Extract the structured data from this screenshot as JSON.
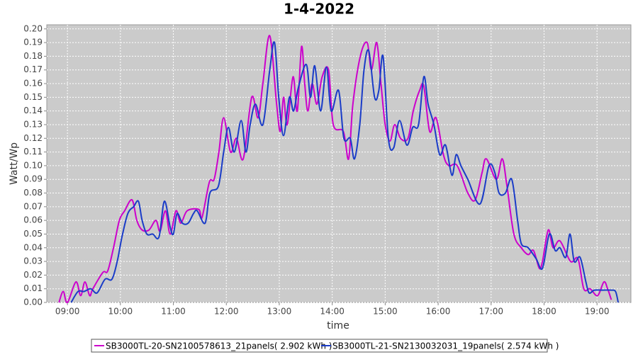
{
  "chart_data": {
    "type": "line",
    "title": "1-4-2022",
    "x_label": "time",
    "y_label": "Watt/Wp",
    "xlim": [
      8.61,
      19.64
    ],
    "ylim": [
      0,
      0.203
    ],
    "grid": true,
    "xticks": [
      {
        "value": 9,
        "label": "09:00"
      },
      {
        "value": 10,
        "label": "10:00"
      },
      {
        "value": 11,
        "label": "11:00"
      },
      {
        "value": 12,
        "label": "12:00"
      },
      {
        "value": 13,
        "label": "13:00"
      },
      {
        "value": 14,
        "label": "14:00"
      },
      {
        "value": 15,
        "label": "15:00"
      },
      {
        "value": 16,
        "label": "16:00"
      },
      {
        "value": 17,
        "label": "17:00"
      },
      {
        "value": 18,
        "label": "18:00"
      },
      {
        "value": 19,
        "label": "19:00"
      }
    ],
    "yticks": [
      {
        "value": 0,
        "label": "0.00"
      },
      {
        "value": 0.01,
        "label": "0.01"
      },
      {
        "value": 0.02,
        "label": "0.02"
      },
      {
        "value": 0.03,
        "label": "0.03"
      },
      {
        "value": 0.04,
        "label": "0.04"
      },
      {
        "value": 0.05,
        "label": "0.05"
      },
      {
        "value": 0.06,
        "label": "0.06"
      },
      {
        "value": 0.07,
        "label": "0.07"
      },
      {
        "value": 0.08,
        "label": "0.08"
      },
      {
        "value": 0.09,
        "label": "0.09"
      },
      {
        "value": 0.1,
        "label": "0.10"
      },
      {
        "value": 0.11,
        "label": "0.11"
      },
      {
        "value": 0.12,
        "label": "0.12"
      },
      {
        "value": 0.13,
        "label": "0.13"
      },
      {
        "value": 0.14,
        "label": "0.14"
      },
      {
        "value": 0.15,
        "label": "0.15"
      },
      {
        "value": 0.16,
        "label": "0.16"
      },
      {
        "value": 0.17,
        "label": "0.17"
      },
      {
        "value": 0.18,
        "label": "0.18"
      },
      {
        "value": 0.19,
        "label": "0.19"
      },
      {
        "value": 0.2,
        "label": "0.20"
      }
    ],
    "series": [
      {
        "name": "SB3000TL-20-SN2100578613_21panels( 2.902 kWh )",
        "color": "#cc00cc",
        "x": [
          8.84,
          8.92,
          9.0,
          9.16,
          9.25,
          9.33,
          9.42,
          9.48,
          9.67,
          9.76,
          9.87,
          9.98,
          10.08,
          10.22,
          10.31,
          10.41,
          10.54,
          10.67,
          10.75,
          10.85,
          10.94,
          11.05,
          11.14,
          11.26,
          11.48,
          11.54,
          11.68,
          11.77,
          11.86,
          11.95,
          12.08,
          12.19,
          12.32,
          12.48,
          12.6,
          12.69,
          12.82,
          12.95,
          13.02,
          13.08,
          13.15,
          13.26,
          13.34,
          13.42,
          13.48,
          13.54,
          13.62,
          13.71,
          13.81,
          13.93,
          14.02,
          14.21,
          14.31,
          14.39,
          14.53,
          14.66,
          14.74,
          14.84,
          14.92,
          15.0,
          15.09,
          15.18,
          15.29,
          15.43,
          15.53,
          15.65,
          15.73,
          15.84,
          15.96,
          16.1,
          16.2,
          16.36,
          16.56,
          16.7,
          16.83,
          16.91,
          17.1,
          17.21,
          17.3,
          17.43,
          17.57,
          17.7,
          17.8,
          17.91,
          17.97,
          18.08,
          18.17,
          18.3,
          18.5,
          18.64,
          18.75,
          18.87,
          19.01,
          19.13,
          19.2,
          19.27
        ],
        "values": [
          0,
          0.008,
          0,
          0.015,
          0.005,
          0.015,
          0.005,
          0.01,
          0.022,
          0.023,
          0.04,
          0.06,
          0.067,
          0.075,
          0.06,
          0.053,
          0.053,
          0.06,
          0.052,
          0.067,
          0.05,
          0.067,
          0.058,
          0.067,
          0.068,
          0.062,
          0.088,
          0.09,
          0.11,
          0.135,
          0.11,
          0.12,
          0.105,
          0.15,
          0.135,
          0.16,
          0.195,
          0.145,
          0.125,
          0.15,
          0.13,
          0.165,
          0.14,
          0.187,
          0.16,
          0.14,
          0.16,
          0.145,
          0.165,
          0.17,
          0.13,
          0.125,
          0.105,
          0.145,
          0.18,
          0.19,
          0.17,
          0.19,
          0.16,
          0.13,
          0.118,
          0.13,
          0.12,
          0.12,
          0.14,
          0.155,
          0.158,
          0.125,
          0.135,
          0.108,
          0.1,
          0.1,
          0.08,
          0.075,
          0.095,
          0.105,
          0.09,
          0.105,
          0.085,
          0.05,
          0.04,
          0.035,
          0.038,
          0.025,
          0.03,
          0.053,
          0.04,
          0.045,
          0.03,
          0.032,
          0.01,
          0.01,
          0.005,
          0.015,
          0.01,
          0.002
        ]
      },
      {
        "name": "SB3000TL-21-SN2130032031_19panels( 2.574 kWh )",
        "color": "#1a3cc8",
        "x": [
          9.07,
          9.2,
          9.31,
          9.44,
          9.56,
          9.71,
          9.84,
          9.94,
          10.03,
          10.14,
          10.25,
          10.34,
          10.41,
          10.5,
          10.61,
          10.73,
          10.83,
          10.94,
          11.0,
          11.07,
          11.17,
          11.28,
          11.38,
          11.45,
          11.6,
          11.69,
          11.85,
          11.95,
          12.04,
          12.15,
          12.28,
          12.37,
          12.45,
          12.55,
          12.69,
          12.82,
          12.91,
          12.99,
          13.08,
          13.19,
          13.27,
          13.36,
          13.51,
          13.59,
          13.67,
          13.78,
          13.89,
          13.98,
          14.12,
          14.22,
          14.34,
          14.42,
          14.52,
          14.6,
          14.69,
          14.8,
          14.88,
          14.96,
          15.06,
          15.16,
          15.27,
          15.41,
          15.52,
          15.63,
          15.73,
          15.81,
          15.92,
          16.03,
          16.14,
          16.26,
          16.34,
          16.43,
          16.56,
          16.79,
          16.96,
          17.07,
          17.15,
          17.27,
          17.39,
          17.5,
          17.57,
          17.7,
          17.85,
          17.97,
          18.1,
          18.21,
          18.3,
          18.41,
          18.49,
          18.57,
          18.68,
          18.79,
          18.85,
          18.95,
          19.11,
          19.27,
          19.35,
          19.4
        ],
        "values": [
          0,
          0.008,
          0.008,
          0.01,
          0.007,
          0.017,
          0.017,
          0.03,
          0.048,
          0.065,
          0.07,
          0.074,
          0.06,
          0.05,
          0.05,
          0.048,
          0.074,
          0.055,
          0.05,
          0.065,
          0.058,
          0.058,
          0.065,
          0.067,
          0.058,
          0.08,
          0.085,
          0.11,
          0.128,
          0.11,
          0.133,
          0.11,
          0.13,
          0.145,
          0.13,
          0.17,
          0.19,
          0.15,
          0.122,
          0.15,
          0.14,
          0.157,
          0.174,
          0.15,
          0.173,
          0.14,
          0.172,
          0.14,
          0.155,
          0.12,
          0.12,
          0.105,
          0.13,
          0.17,
          0.184,
          0.15,
          0.155,
          0.18,
          0.12,
          0.113,
          0.133,
          0.115,
          0.128,
          0.13,
          0.165,
          0.145,
          0.13,
          0.108,
          0.115,
          0.093,
          0.108,
          0.1,
          0.09,
          0.072,
          0.1,
          0.095,
          0.08,
          0.08,
          0.09,
          0.06,
          0.043,
          0.04,
          0.032,
          0.025,
          0.05,
          0.038,
          0.04,
          0.033,
          0.05,
          0.03,
          0.033,
          0.015,
          0.007,
          0.009,
          0.009,
          0.009,
          0.008,
          0
        ]
      }
    ]
  }
}
